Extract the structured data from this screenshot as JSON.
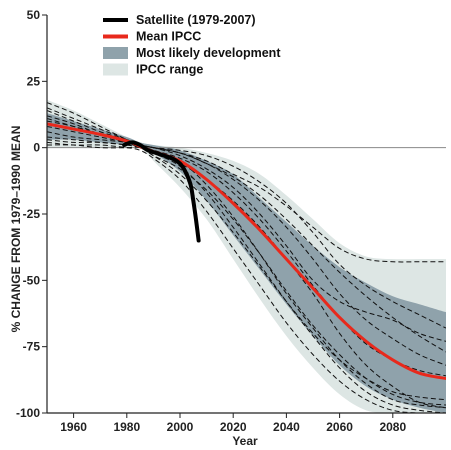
{
  "chart_data": {
    "type": "line",
    "xlabel": "Year",
    "ylabel": "% CHANGE FROM 1979–1990 MEAN",
    "xlim": [
      1950,
      2100
    ],
    "ylim": [
      -100,
      50
    ],
    "xticks": [
      1960,
      1980,
      2000,
      2020,
      2040,
      2060,
      2080
    ],
    "yticks": [
      50,
      25,
      0,
      -25,
      -50,
      -75,
      -100
    ],
    "legend_position": "top-left",
    "legend": [
      {
        "label": "Satellite (1979-2007)",
        "kind": "line",
        "color": "#000000"
      },
      {
        "label": "Mean IPCC",
        "kind": "line",
        "color": "#e8291c"
      },
      {
        "label": "Most likely development",
        "kind": "patch",
        "color": "#8fa2ab"
      },
      {
        "label": "IPCC range",
        "kind": "patch",
        "color": "#dde6e4"
      }
    ],
    "ipcc_range": {
      "x": [
        1950,
        1960,
        1970,
        1980,
        1985,
        1990,
        2000,
        2010,
        2020,
        2030,
        2040,
        2050,
        2060,
        2070,
        2080,
        2090,
        2100
      ],
      "upper": [
        18,
        14,
        9,
        4,
        2,
        1,
        0,
        -2,
        -5,
        -10,
        -18,
        -27,
        -36,
        -41,
        -42,
        -42,
        -42
      ],
      "lower": [
        0,
        0,
        0,
        0,
        0,
        -5,
        -15,
        -27,
        -42,
        -57,
        -71,
        -83,
        -93,
        -99,
        -100,
        -100,
        -100
      ]
    },
    "most_likely": {
      "x": [
        1950,
        1960,
        1970,
        1980,
        1985,
        1990,
        2000,
        2010,
        2020,
        2030,
        2040,
        2050,
        2060,
        2070,
        2080,
        2090,
        2100
      ],
      "upper": [
        13,
        10,
        7,
        4,
        2,
        1,
        -1,
        -5,
        -10,
        -19,
        -28,
        -37,
        -45,
        -51,
        -56,
        -59,
        -62
      ],
      "lower": [
        3,
        3,
        2,
        1,
        0,
        -2,
        -9,
        -20,
        -33,
        -46,
        -59,
        -71,
        -82,
        -90,
        -95,
        -98,
        -100
      ]
    },
    "series": [
      {
        "name": "Satellite (1979-2007)",
        "color": "#000000",
        "x": [
          1979,
          1982,
          1985,
          1988,
          1991,
          1994,
          1997,
          2000,
          2002,
          2004,
          2005,
          2006,
          2007
        ],
        "y": [
          1,
          2,
          1,
          -1,
          -2,
          -3,
          -4,
          -6,
          -9,
          -14,
          -20,
          -27,
          -35
        ]
      },
      {
        "name": "Mean IPCC",
        "color": "#e8291c",
        "x": [
          1950,
          1960,
          1970,
          1980,
          1985,
          1990,
          2000,
          2010,
          2020,
          2030,
          2040,
          2050,
          2060,
          2070,
          2080,
          2090,
          2100
        ],
        "y": [
          9,
          7,
          5,
          2.5,
          0.5,
          -1.5,
          -5,
          -12,
          -21,
          -31,
          -42,
          -53,
          -64,
          -73,
          -80,
          -85,
          -87
        ]
      }
    ],
    "model_runs": [
      {
        "x": [
          1950,
          1960,
          1970,
          1980,
          1985,
          1990,
          2000,
          2010,
          2020,
          2030,
          2040,
          2050,
          2060,
          2070,
          2080,
          2090,
          2100
        ],
        "y": [
          17,
          13,
          8,
          3,
          1,
          0,
          -2,
          -5,
          -10,
          -15,
          -22,
          -30,
          -38,
          -42,
          -43,
          -43,
          -43
        ]
      },
      {
        "x": [
          1950,
          1960,
          1970,
          1980,
          1985,
          1990,
          2000,
          2010,
          2020,
          2030,
          2040,
          2050,
          2060,
          2070,
          2080,
          2090,
          2100
        ],
        "y": [
          14,
          10,
          6,
          3,
          1,
          0,
          -3,
          -8,
          -15,
          -25,
          -37,
          -50,
          -58,
          -62,
          -65,
          -70,
          -73
        ]
      },
      {
        "x": [
          1950,
          1960,
          1970,
          1980,
          1985,
          1990,
          2000,
          2010,
          2020,
          2030,
          2040,
          2050,
          2060,
          2070,
          2080,
          2090,
          2100
        ],
        "y": [
          12,
          9,
          5,
          2,
          0,
          -2,
          -6,
          -12,
          -20,
          -30,
          -42,
          -55,
          -70,
          -82,
          -90,
          -96,
          -98
        ]
      },
      {
        "x": [
          1950,
          1960,
          1970,
          1980,
          1985,
          1990,
          2000,
          2010,
          2020,
          2030,
          2040,
          2050,
          2060,
          2070,
          2080,
          2090,
          2100
        ],
        "y": [
          6,
          4,
          3,
          2,
          1,
          0,
          -2,
          -6,
          -12,
          -20,
          -30,
          -42,
          -55,
          -65,
          -72,
          -78,
          -82
        ]
      },
      {
        "x": [
          1950,
          1960,
          1970,
          1980,
          1985,
          1990,
          2000,
          2010,
          2020,
          2030,
          2040,
          2050,
          2060,
          2070,
          2080,
          2090,
          2100
        ],
        "y": [
          4,
          3,
          2,
          1,
          0,
          -3,
          -10,
          -20,
          -32,
          -45,
          -58,
          -70,
          -80,
          -87,
          -92,
          -94,
          -95
        ]
      },
      {
        "x": [
          1950,
          1960,
          1970,
          1980,
          1985,
          1990,
          2000,
          2010,
          2020,
          2030,
          2040,
          2050,
          2060,
          2070,
          2080,
          2090,
          2100
        ],
        "y": [
          2,
          1,
          1,
          0,
          -1,
          -4,
          -12,
          -24,
          -38,
          -52,
          -66,
          -78,
          -88,
          -95,
          -99,
          -100,
          -100
        ]
      },
      {
        "x": [
          1950,
          1960,
          1970,
          1980,
          1985,
          1990,
          2000,
          2010,
          2020,
          2030,
          2040,
          2050,
          2060,
          2070,
          2080,
          2090,
          2100
        ],
        "y": [
          10,
          8,
          5,
          2,
          0,
          -1,
          -4,
          -9,
          -17,
          -27,
          -39,
          -52,
          -64,
          -74,
          -80,
          -84,
          -86
        ]
      },
      {
        "x": [
          1950,
          1960,
          1970,
          1980,
          1985,
          1990,
          2000,
          2010,
          2020,
          2030,
          2040,
          2050,
          2060,
          2070,
          2080,
          2090,
          2100
        ],
        "y": [
          8,
          6,
          4,
          2,
          1,
          -1,
          -5,
          -14,
          -26,
          -40,
          -55,
          -68,
          -80,
          -89,
          -95,
          -97,
          -98
        ]
      },
      {
        "x": [
          1950,
          1960,
          1970,
          1980,
          1985,
          1990,
          2000,
          2010,
          2020,
          2030,
          2040,
          2050,
          2060,
          2070,
          2080,
          2090,
          2100
        ],
        "y": [
          15,
          11,
          7,
          3,
          1,
          0,
          -1,
          -3,
          -7,
          -13,
          -21,
          -32,
          -44,
          -52,
          -58,
          -63,
          -68
        ]
      },
      {
        "x": [
          1950,
          1960,
          1970,
          1980,
          1985,
          1990,
          2000,
          2010,
          2020,
          2030,
          2040,
          2050,
          2060,
          2070,
          2080,
          2090,
          2100
        ],
        "y": [
          1,
          1,
          0,
          0,
          0,
          -3,
          -8,
          -16,
          -27,
          -40,
          -54,
          -67,
          -78,
          -87,
          -93,
          -96,
          -97
        ]
      },
      {
        "x": [
          1950,
          1960,
          1970,
          1980,
          1985,
          1990,
          2000,
          2010,
          2020,
          2030,
          2040,
          2050,
          2060,
          2070,
          2080,
          2090,
          2100
        ],
        "y": [
          11,
          8,
          5,
          3,
          1,
          0,
          -2,
          -6,
          -11,
          -18,
          -27,
          -37,
          -47,
          -56,
          -64,
          -71,
          -77
        ]
      },
      {
        "x": [
          1950,
          1960,
          1970,
          1980,
          1985,
          1990,
          2000,
          2010,
          2020,
          2030,
          2040,
          2050,
          2060,
          2070,
          2080,
          2090,
          2100
        ],
        "y": [
          3,
          2,
          2,
          1,
          0,
          -2,
          -7,
          -17,
          -30,
          -44,
          -58,
          -71,
          -83,
          -92,
          -97,
          -99,
          -100
        ]
      }
    ],
    "zero_line": 0
  }
}
